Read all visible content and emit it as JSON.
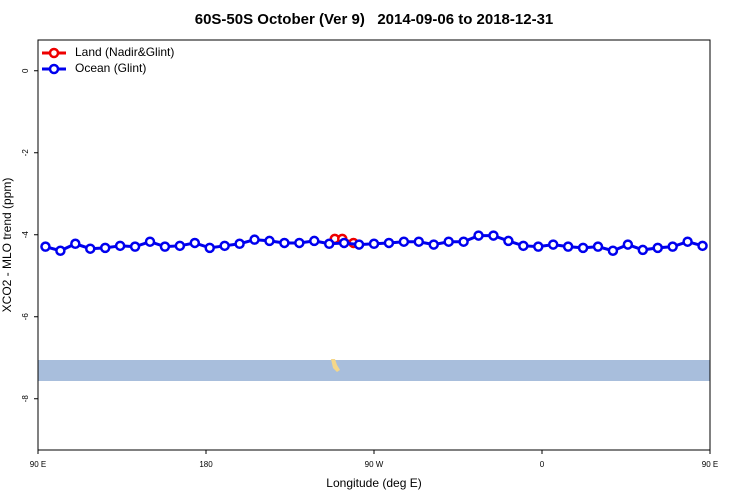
{
  "chart_data": {
    "type": "line",
    "title": "60S-50S October (Ver 9)   2014-09-06 to 2018-12-31",
    "x_label": "Longitude (deg E)",
    "y_label": "XCO2 - MLO trend (ppm)",
    "xlim": [
      90,
      450
    ],
    "xticks": [
      {
        "value": 90,
        "label": "90 E"
      },
      {
        "value": 180,
        "label": "180"
      },
      {
        "value": 270,
        "label": "90 W"
      },
      {
        "value": 360,
        "label": "0"
      },
      {
        "value": 450,
        "label": "90 E"
      }
    ],
    "xticks_extra_note_free": null,
    "ylim": [
      -9.25,
      0.75
    ],
    "yticks": [
      0,
      -2,
      -4,
      -6,
      -8
    ],
    "legend": "top-left",
    "series": [
      {
        "name": "Land (Nadir&Glint)",
        "color": "#ee0000",
        "x": [
          249,
          253,
          259
        ],
        "values": [
          -4.1,
          -4.1,
          -4.2
        ]
      },
      {
        "name": "Ocean (Glint)",
        "color": "#0000ee",
        "x": [
          94,
          102,
          110,
          118,
          126,
          134,
          142,
          150,
          158,
          166,
          174,
          182,
          190,
          198,
          206,
          214,
          222,
          230,
          238,
          246,
          254,
          262,
          270,
          278,
          286,
          294,
          302,
          310,
          318,
          326,
          334,
          342,
          350,
          358,
          366,
          374,
          382,
          390,
          398,
          406,
          414,
          422,
          430,
          438,
          446
        ],
        "values": [
          -4.29,
          -4.39,
          -4.22,
          -4.34,
          -4.32,
          -4.27,
          -4.29,
          -4.17,
          -4.29,
          -4.27,
          -4.2,
          -4.32,
          -4.27,
          -4.22,
          -4.12,
          -4.15,
          -4.2,
          -4.2,
          -4.15,
          -4.22,
          -4.2,
          -4.24,
          -4.22,
          -4.2,
          -4.17,
          -4.17,
          -4.24,
          -4.17,
          -4.17,
          -4.02,
          -4.02,
          -4.15,
          -4.27,
          -4.29,
          -4.24,
          -4.29,
          -4.32,
          -4.29,
          -4.39,
          -4.24,
          -4.37,
          -4.32,
          -4.29,
          -4.17,
          -4.27
        ]
      }
    ]
  }
}
